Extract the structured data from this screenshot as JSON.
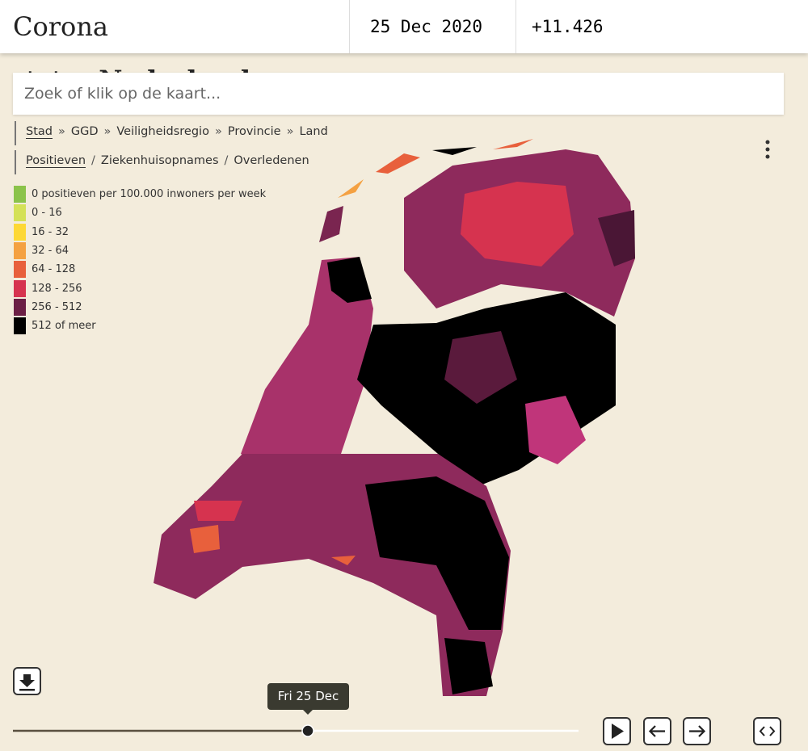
{
  "header": {
    "title": "Corona status",
    "region": "Nederland",
    "date": "25 Dec 2020",
    "count": "+11.426"
  },
  "search": {
    "placeholder": "Zoek of klik op de kaart..."
  },
  "levels": {
    "items": [
      "Stad",
      "GGD",
      "Veiligheidsregio",
      "Provincie",
      "Land"
    ],
    "separator": "»"
  },
  "metrics": {
    "items": [
      "Positieven",
      "Ziekenhuisopnames",
      "Overledenen"
    ],
    "separator": "/"
  },
  "legend": [
    {
      "label": "0 positieven per 100.000 inwoners per week",
      "color": "#8bc34a"
    },
    {
      "label": "0 - 16",
      "color": "#d4e157"
    },
    {
      "label": "16 - 32",
      "color": "#fdd835"
    },
    {
      "label": "32 - 64",
      "color": "#f4a142"
    },
    {
      "label": "64 - 128",
      "color": "#e8603c"
    },
    {
      "label": "128 - 256",
      "color": "#d6334f"
    },
    {
      "label": "256 - 512",
      "color": "#6b1f45"
    },
    {
      "label": "512 of meer",
      "color": "#000000"
    }
  ],
  "slider": {
    "tooltip": "Fri 25 Dec"
  }
}
